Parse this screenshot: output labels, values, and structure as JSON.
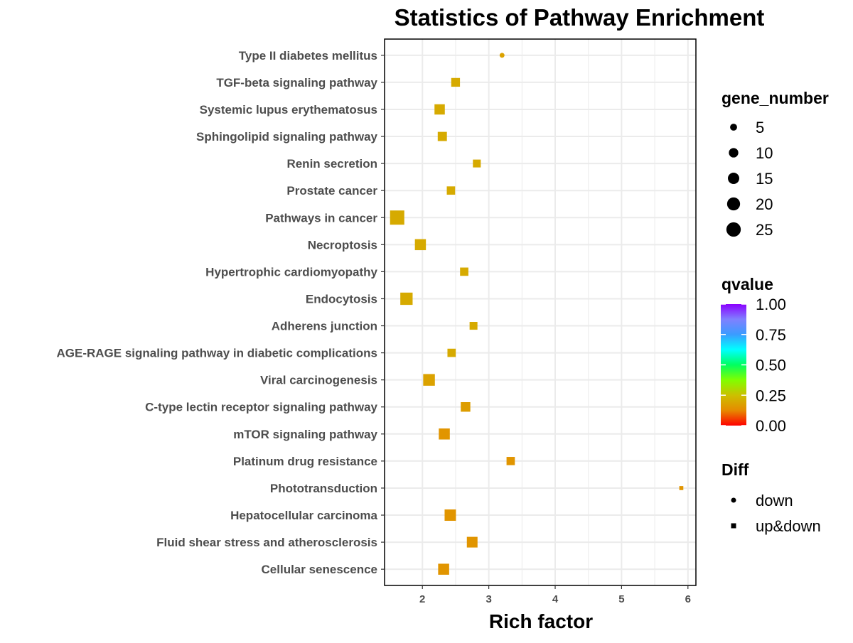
{
  "chart_data": {
    "type": "scatter",
    "title": "Statistics of Pathway Enrichment",
    "xlabel": "Rich factor",
    "ylabel": "",
    "xlim": [
      1.43,
      6.12
    ],
    "x_ticks": [
      "2",
      "3",
      "4",
      "5",
      "6"
    ],
    "x_tick_values": [
      2,
      3,
      4,
      5,
      6
    ],
    "grid": true,
    "legend_position": "right",
    "categories": [
      "Type II diabetes mellitus",
      "TGF-beta signaling pathway",
      "Systemic lupus erythematosus",
      "Sphingolipid signaling pathway",
      "Renin secretion",
      "Prostate cancer",
      "Pathways in cancer",
      "Necroptosis",
      "Hypertrophic cardiomyopathy",
      "Endocytosis",
      "Adherens junction",
      "AGE-RAGE signaling pathway in diabetic complications",
      "Viral carcinogenesis",
      "C-type lectin receptor signaling pathway",
      "mTOR signaling pathway",
      "Platinum drug resistance",
      "Phototransduction",
      "Hepatocellular carcinoma",
      "Fluid shear stress and atherosclerosis",
      "Cellular senescence"
    ],
    "points": [
      {
        "pathway": "Type II diabetes mellitus",
        "rich_factor": 3.2,
        "gene_number": 3,
        "qvalue": 0.18,
        "diff": "down"
      },
      {
        "pathway": "TGF-beta signaling pathway",
        "rich_factor": 2.5,
        "gene_number": 10,
        "qvalue": 0.2,
        "diff": "up&down"
      },
      {
        "pathway": "Systemic lupus erythematosus",
        "rich_factor": 2.26,
        "gene_number": 14,
        "qvalue": 0.2,
        "diff": "up&down"
      },
      {
        "pathway": "Sphingolipid signaling pathway",
        "rich_factor": 2.3,
        "gene_number": 11,
        "qvalue": 0.2,
        "diff": "up&down"
      },
      {
        "pathway": "Renin secretion",
        "rich_factor": 2.82,
        "gene_number": 8,
        "qvalue": 0.2,
        "diff": "up&down"
      },
      {
        "pathway": "Prostate cancer",
        "rich_factor": 2.43,
        "gene_number": 9,
        "qvalue": 0.2,
        "diff": "up&down"
      },
      {
        "pathway": "Pathways in cancer",
        "rich_factor": 1.62,
        "gene_number": 27,
        "qvalue": 0.2,
        "diff": "up&down"
      },
      {
        "pathway": "Necroptosis",
        "rich_factor": 1.97,
        "gene_number": 16,
        "qvalue": 0.2,
        "diff": "up&down"
      },
      {
        "pathway": "Hypertrophic cardiomyopathy",
        "rich_factor": 2.63,
        "gene_number": 9,
        "qvalue": 0.2,
        "diff": "up&down"
      },
      {
        "pathway": "Endocytosis",
        "rich_factor": 1.76,
        "gene_number": 20,
        "qvalue": 0.2,
        "diff": "up&down"
      },
      {
        "pathway": "Adherens junction",
        "rich_factor": 2.77,
        "gene_number": 8,
        "qvalue": 0.2,
        "diff": "up&down"
      },
      {
        "pathway": "AGE-RAGE signaling pathway in diabetic complications",
        "rich_factor": 2.44,
        "gene_number": 9,
        "qvalue": 0.2,
        "diff": "up&down"
      },
      {
        "pathway": "Viral carcinogenesis",
        "rich_factor": 2.1,
        "gene_number": 18,
        "qvalue": 0.18,
        "diff": "up&down"
      },
      {
        "pathway": "C-type lectin receptor signaling pathway",
        "rich_factor": 2.65,
        "gene_number": 12,
        "qvalue": 0.17,
        "diff": "up&down"
      },
      {
        "pathway": "mTOR signaling pathway",
        "rich_factor": 2.33,
        "gene_number": 16,
        "qvalue": 0.15,
        "diff": "up&down"
      },
      {
        "pathway": "Platinum drug resistance",
        "rich_factor": 3.33,
        "gene_number": 9,
        "qvalue": 0.15,
        "diff": "up&down"
      },
      {
        "pathway": "Phototransduction",
        "rich_factor": 5.9,
        "gene_number": 2,
        "qvalue": 0.15,
        "diff": "up&down"
      },
      {
        "pathway": "Hepatocellular carcinoma",
        "rich_factor": 2.42,
        "gene_number": 17,
        "qvalue": 0.15,
        "diff": "up&down"
      },
      {
        "pathway": "Fluid shear stress and atherosclerosis",
        "rich_factor": 2.75,
        "gene_number": 15,
        "qvalue": 0.15,
        "diff": "up&down"
      },
      {
        "pathway": "Cellular senescence",
        "rich_factor": 2.32,
        "gene_number": 16,
        "qvalue": 0.15,
        "diff": "up&down"
      }
    ],
    "legend": {
      "size": {
        "title": "gene_number",
        "entries": [
          "5",
          "10",
          "15",
          "20",
          "25"
        ],
        "values": [
          5,
          10,
          15,
          20,
          25
        ]
      },
      "color": {
        "title": "qvalue",
        "labels": [
          "1.00",
          "0.75",
          "0.50",
          "0.25",
          "0.00"
        ],
        "values": [
          1.0,
          0.75,
          0.5,
          0.25,
          0.0
        ],
        "gradient": [
          "#ff0000",
          "#e68a00",
          "#ccc000",
          "#80ff00",
          "#00ff60",
          "#00ffff",
          "#3a9cff",
          "#8080ff",
          "#8b00ff"
        ]
      },
      "shape": {
        "title": "Diff",
        "entries": [
          {
            "label": "down",
            "shape": "circle"
          },
          {
            "label": "up&down",
            "shape": "square"
          }
        ]
      }
    }
  },
  "colors": {
    "text": "#000000",
    "tick_text": "#4d4d4d",
    "grid": "#ebebeb",
    "panel_border": "#000000"
  }
}
